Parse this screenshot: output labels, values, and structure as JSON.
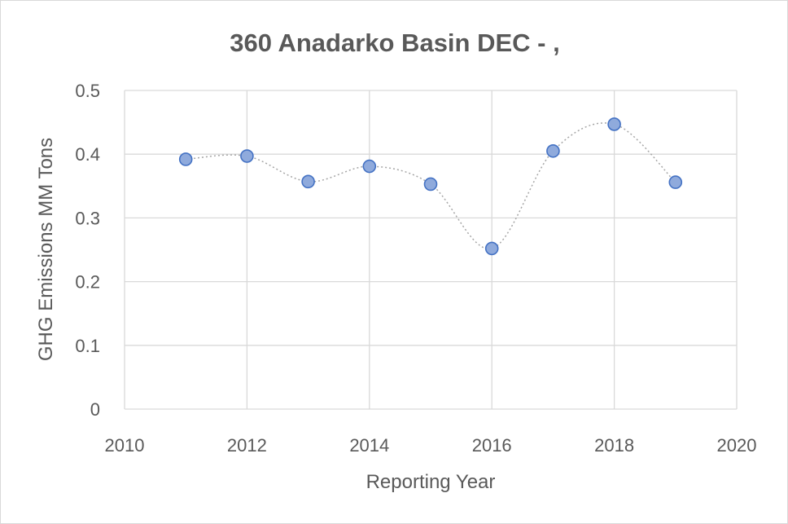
{
  "chart_data": {
    "type": "scatter",
    "title": "360 Anadarko Basin DEC - ,",
    "xlabel": "Reporting Year",
    "ylabel": "GHG Emissions MM Tons",
    "xlim": [
      2010,
      2020
    ],
    "ylim": [
      0,
      0.5
    ],
    "x_ticks": [
      "2010",
      "2012",
      "2014",
      "2016",
      "2018",
      "2020"
    ],
    "y_ticks": [
      "0",
      "0.1",
      "0.2",
      "0.3",
      "0.4",
      "0.5"
    ],
    "grid": true,
    "smoothed_dotted_line": true,
    "marker_color": "#8faadc",
    "marker_edge_color": "#4472c4",
    "line_color": "#a6a6a6",
    "grid_color": "#d9d9d9",
    "x": [
      2011,
      2012,
      2013,
      2014,
      2015,
      2016,
      2017,
      2018,
      2019
    ],
    "y": [
      0.392,
      0.397,
      0.357,
      0.381,
      0.353,
      0.252,
      0.405,
      0.447,
      0.356
    ]
  }
}
